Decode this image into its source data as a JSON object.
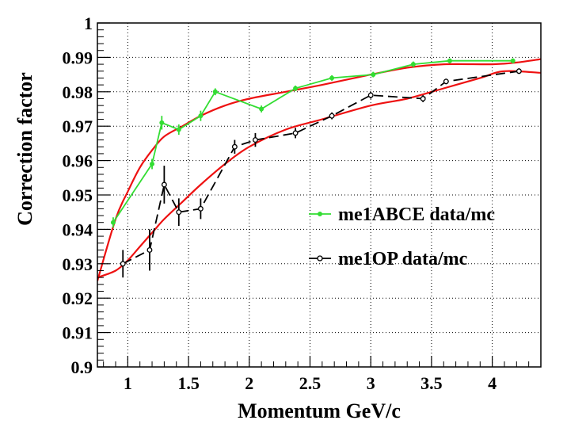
{
  "chart_data": {
    "type": "line",
    "title": "",
    "xlabel": "Momentum GeV/c",
    "ylabel": "Correction factor",
    "xlim": [
      0.75,
      4.4
    ],
    "ylim": [
      0.9,
      1.0
    ],
    "grid": true,
    "legend_position": "right",
    "x_ticks": [
      "1",
      "1.5",
      "2",
      "2.5",
      "3",
      "3.5",
      "4"
    ],
    "y_ticks": [
      "0.9",
      "0.91",
      "0.92",
      "0.93",
      "0.94",
      "0.95",
      "0.96",
      "0.97",
      "0.98",
      "0.99",
      "1"
    ],
    "series": [
      {
        "name": "me1ABCE data/mc",
        "color": "#33dd33",
        "marker": "filled-circle",
        "line": "solid",
        "x": [
          0.88,
          1.2,
          1.28,
          1.42,
          1.6,
          1.72,
          2.1,
          2.38,
          2.68,
          3.02,
          3.35,
          3.65,
          4.17
        ],
        "y": [
          0.942,
          0.959,
          0.971,
          0.969,
          0.973,
          0.98,
          0.975,
          0.981,
          0.984,
          0.985,
          0.988,
          0.989,
          0.989
        ],
        "err": [
          0.0015,
          0.0015,
          0.002,
          0.0015,
          0.0015,
          0.001,
          0.001,
          0.0008,
          0.0008,
          0.0008,
          0.0008,
          0.0007,
          0.0007
        ]
      },
      {
        "name": "me1OP data/mc",
        "color": "#000000",
        "marker": "open-circle",
        "line": "dashed",
        "x": [
          0.96,
          1.18,
          1.3,
          1.42,
          1.6,
          1.88,
          2.05,
          2.38,
          2.68,
          3.0,
          3.43,
          3.62,
          4.22
        ],
        "y": [
          0.93,
          0.934,
          0.953,
          0.945,
          0.946,
          0.964,
          0.966,
          0.968,
          0.973,
          0.979,
          0.978,
          0.983,
          0.986
        ],
        "err": [
          0.004,
          0.006,
          0.0055,
          0.004,
          0.003,
          0.002,
          0.002,
          0.0015,
          0.001,
          0.001,
          0.001,
          0.0008,
          0.0008
        ]
      }
    ],
    "fits": [
      {
        "for_series": "me1ABCE data/mc",
        "color": "#ee1111",
        "x": [
          0.75,
          0.9,
          1.0,
          1.1,
          1.2,
          1.3,
          1.45,
          1.6,
          1.8,
          2.0,
          2.3,
          2.6,
          3.0,
          3.3,
          3.6,
          4.0,
          4.2,
          4.4
        ],
        "y": [
          0.925,
          0.943,
          0.951,
          0.958,
          0.963,
          0.967,
          0.97,
          0.973,
          0.976,
          0.978,
          0.98,
          0.982,
          0.985,
          0.987,
          0.988,
          0.988,
          0.9885,
          0.9895
        ]
      },
      {
        "for_series": "me1OP data/mc",
        "color": "#ee1111",
        "x": [
          0.75,
          0.9,
          1.0,
          1.1,
          1.2,
          1.3,
          1.45,
          1.6,
          1.8,
          2.0,
          2.3,
          2.6,
          3.0,
          3.3,
          3.6,
          3.9,
          4.1,
          4.4
        ],
        "y": [
          0.926,
          0.928,
          0.931,
          0.935,
          0.939,
          0.943,
          0.948,
          0.953,
          0.959,
          0.964,
          0.969,
          0.972,
          0.976,
          0.978,
          0.981,
          0.984,
          0.986,
          0.9855
        ]
      }
    ]
  }
}
